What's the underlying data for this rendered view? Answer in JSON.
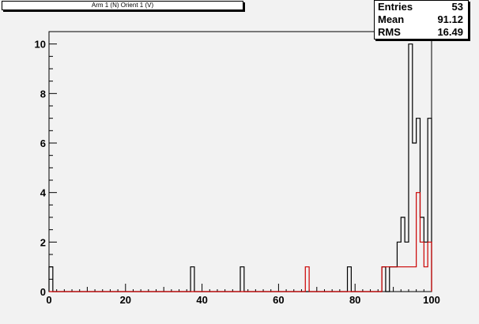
{
  "title": "Arm 1 (N) Orient 1 (V)",
  "stats": {
    "rows": [
      {
        "label": "Entries",
        "value": "53"
      },
      {
        "label": "Mean",
        "value": "91.12"
      },
      {
        "label": "RMS",
        "value": "16.49"
      }
    ]
  },
  "colors": {
    "background": "#f2f2f2",
    "frame": "#000000",
    "primary_series": "#000000",
    "secondary_series": "#cc0000"
  },
  "chart_data": {
    "type": "histogram",
    "title": "Arm 1 (N) Orient 1 (V)",
    "xlabel": "",
    "ylabel": "",
    "xlim": [
      0,
      100
    ],
    "ylim": [
      0,
      10.5
    ],
    "grid": false,
    "legend": "none",
    "bin_width": 1,
    "x_ticks": [
      0,
      20,
      40,
      60,
      80,
      100
    ],
    "y_ticks": [
      0,
      2,
      4,
      6,
      8,
      10
    ],
    "series": [
      {
        "color": "#000000",
        "bins": [
          {
            "x0": 0,
            "x1": 1,
            "value": 1
          },
          {
            "x0": 37,
            "x1": 38,
            "value": 1
          },
          {
            "x0": 50,
            "x1": 51,
            "value": 1
          },
          {
            "x0": 78,
            "x1": 79,
            "value": 1
          },
          {
            "x0": 87,
            "x1": 88,
            "value": 1
          },
          {
            "x0": 89,
            "x1": 90,
            "value": 1
          },
          {
            "x0": 90,
            "x1": 91,
            "value": 1
          },
          {
            "x0": 91,
            "x1": 92,
            "value": 2
          },
          {
            "x0": 92,
            "x1": 93,
            "value": 3
          },
          {
            "x0": 93,
            "x1": 94,
            "value": 2
          },
          {
            "x0": 94,
            "x1": 95,
            "value": 10
          },
          {
            "x0": 95,
            "x1": 96,
            "value": 6
          },
          {
            "x0": 96,
            "x1": 97,
            "value": 7
          },
          {
            "x0": 97,
            "x1": 98,
            "value": 3
          },
          {
            "x0": 98,
            "x1": 99,
            "value": 2
          },
          {
            "x0": 99,
            "x1": 100,
            "value": 7
          }
        ]
      },
      {
        "color": "#cc0000",
        "bins": [
          {
            "x0": 67,
            "x1": 68,
            "value": 1
          },
          {
            "x0": 87,
            "x1": 88,
            "value": 1
          },
          {
            "x0": 88,
            "x1": 89,
            "value": 1
          },
          {
            "x0": 89,
            "x1": 90,
            "value": 1
          },
          {
            "x0": 90,
            "x1": 91,
            "value": 1
          },
          {
            "x0": 91,
            "x1": 92,
            "value": 1
          },
          {
            "x0": 92,
            "x1": 93,
            "value": 1
          },
          {
            "x0": 93,
            "x1": 94,
            "value": 1
          },
          {
            "x0": 94,
            "x1": 95,
            "value": 1
          },
          {
            "x0": 95,
            "x1": 96,
            "value": 1
          },
          {
            "x0": 96,
            "x1": 97,
            "value": 4
          },
          {
            "x0": 97,
            "x1": 98,
            "value": 2
          },
          {
            "x0": 98,
            "x1": 99,
            "value": 1
          },
          {
            "x0": 99,
            "x1": 100,
            "value": 2
          }
        ]
      }
    ]
  }
}
